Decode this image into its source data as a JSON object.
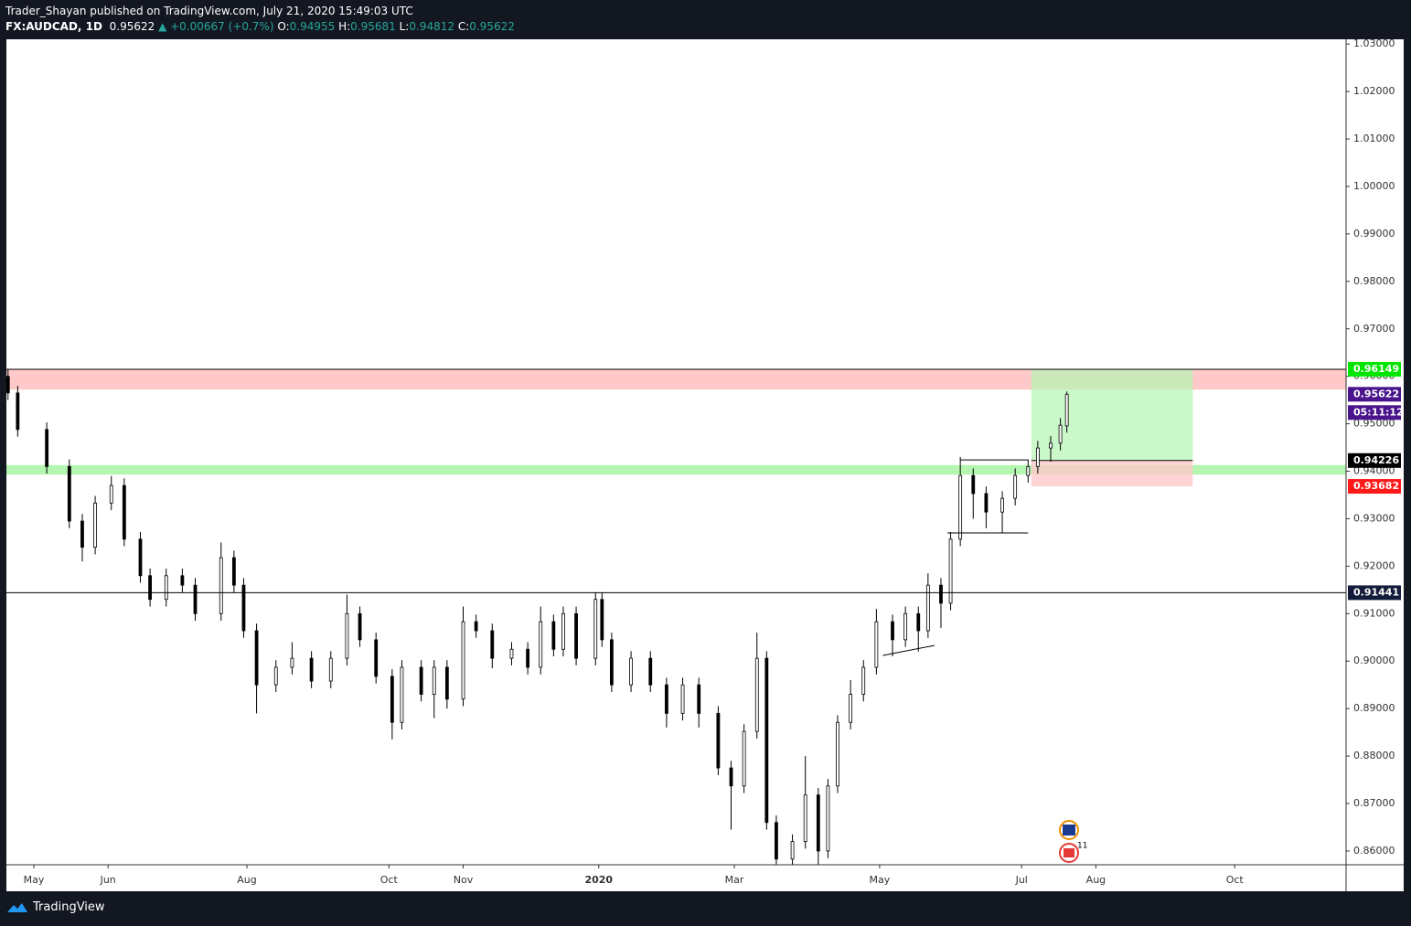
{
  "header": {
    "author_line": "Trader_Shayan published on TradingView.com, July 21, 2020 15:49:03 UTC",
    "symbol": "FX:AUDCAD, 1D",
    "last": "0.95622",
    "change": "▲ +0.00667 (+0.7%)",
    "ohlc": [
      {
        "label": "O:",
        "value": "0.94955"
      },
      {
        "label": "H:",
        "value": "0.95681"
      },
      {
        "label": "L:",
        "value": "0.94812"
      },
      {
        "label": "C:",
        "value": "0.95622"
      }
    ]
  },
  "chart_data": {
    "type": "candlestick",
    "x": [
      -8,
      -5,
      4,
      11,
      15,
      19,
      24,
      28,
      33,
      36,
      41,
      46,
      50,
      58,
      62,
      65,
      69,
      75,
      80,
      86,
      92,
      97,
      101,
      106,
      111,
      114,
      120,
      124,
      128,
      133,
      137,
      142,
      148,
      153,
      157,
      161,
      164,
      168,
      174,
      176,
      179,
      185,
      191,
      196,
      201,
      206,
      212,
      216,
      220,
      224,
      227,
      230,
      235,
      239,
      243,
      246,
      249,
      253,
      257,
      261,
      266,
      270,
      274,
      277,
      281,
      284,
      287,
      291,
      295,
      300,
      304,
      308,
      311,
      315,
      318,
      320
    ],
    "open": [
      0.96,
      0.9565,
      0.9488,
      0.941,
      0.9295,
      0.924,
      0.9333,
      0.937,
      0.9257,
      0.918,
      0.913,
      0.918,
      0.916,
      0.91,
      0.9218,
      0.916,
      0.9064,
      0.895,
      0.8987,
      0.9006,
      0.8958,
      0.9006,
      0.91,
      0.9045,
      0.8968,
      0.8871,
      0.8987,
      0.893,
      0.8987,
      0.892,
      0.9083,
      0.9064,
      0.9006,
      0.9025,
      0.8987,
      0.9083,
      0.9025,
      0.91,
      0.9006,
      0.913,
      0.9045,
      0.895,
      0.9006,
      0.895,
      0.889,
      0.895,
      0.889,
      0.8775,
      0.8737,
      0.8852,
      0.9006,
      0.866,
      0.8583,
      0.862,
      0.8718,
      0.86,
      0.8737,
      0.8871,
      0.893,
      0.8987,
      0.9083,
      0.9045,
      0.91,
      0.9064,
      0.916,
      0.9122,
      0.9257,
      0.9391,
      0.9353,
      0.9314,
      0.9343,
      0.9391,
      0.941,
      0.9449,
      0.9459,
      0.94955
    ],
    "high": [
      0.9615,
      0.958,
      0.9503,
      0.9425,
      0.931,
      0.9348,
      0.939,
      0.9385,
      0.9272,
      0.9195,
      0.9195,
      0.9195,
      0.9175,
      0.925,
      0.9233,
      0.9175,
      0.9079,
      0.9002,
      0.904,
      0.9021,
      0.9021,
      0.914,
      0.9115,
      0.906,
      0.8983,
      0.9002,
      0.9002,
      0.9002,
      0.9002,
      0.9115,
      0.9098,
      0.9079,
      0.904,
      0.904,
      0.9115,
      0.9098,
      0.9115,
      0.9115,
      0.9145,
      0.9145,
      0.906,
      0.9021,
      0.9021,
      0.8965,
      0.8965,
      0.8965,
      0.8905,
      0.879,
      0.8867,
      0.906,
      0.9021,
      0.8675,
      0.8635,
      0.88,
      0.8733,
      0.8752,
      0.8886,
      0.896,
      0.9002,
      0.911,
      0.9098,
      0.9115,
      0.9115,
      0.9185,
      0.9175,
      0.9272,
      0.943,
      0.9406,
      0.9368,
      0.9358,
      0.9406,
      0.9425,
      0.9464,
      0.9474,
      0.9512,
      0.95681
    ],
    "low": [
      0.955,
      0.9473,
      0.9395,
      0.928,
      0.921,
      0.9225,
      0.9318,
      0.9242,
      0.9165,
      0.9115,
      0.9115,
      0.9145,
      0.9085,
      0.9085,
      0.9145,
      0.9049,
      0.889,
      0.8935,
      0.8972,
      0.8943,
      0.8943,
      0.8991,
      0.903,
      0.8953,
      0.8835,
      0.8856,
      0.8915,
      0.888,
      0.89,
      0.8905,
      0.9049,
      0.8985,
      0.8991,
      0.8972,
      0.8972,
      0.901,
      0.901,
      0.8991,
      0.8991,
      0.903,
      0.8935,
      0.8935,
      0.8935,
      0.886,
      0.8875,
      0.886,
      0.876,
      0.8645,
      0.8722,
      0.8837,
      0.8645,
      0.856,
      0.856,
      0.8605,
      0.857,
      0.8585,
      0.8722,
      0.8856,
      0.8915,
      0.8972,
      0.901,
      0.903,
      0.902,
      0.9049,
      0.907,
      0.9107,
      0.9242,
      0.93,
      0.928,
      0.927,
      0.9328,
      0.9376,
      0.9395,
      0.942,
      0.9444,
      0.94812
    ],
    "close": [
      0.9565,
      0.9488,
      0.941,
      0.9295,
      0.924,
      0.9333,
      0.937,
      0.9257,
      0.918,
      0.913,
      0.918,
      0.916,
      0.91,
      0.9218,
      0.916,
      0.9064,
      0.895,
      0.8987,
      0.9006,
      0.8958,
      0.9006,
      0.91,
      0.9045,
      0.8968,
      0.8871,
      0.8987,
      0.893,
      0.8987,
      0.892,
      0.9083,
      0.9064,
      0.9006,
      0.9025,
      0.8987,
      0.9083,
      0.9025,
      0.91,
      0.9006,
      0.913,
      0.9045,
      0.895,
      0.9006,
      0.895,
      0.889,
      0.895,
      0.889,
      0.8775,
      0.8737,
      0.8852,
      0.9006,
      0.866,
      0.8583,
      0.862,
      0.8718,
      0.86,
      0.8737,
      0.8871,
      0.893,
      0.8987,
      0.9083,
      0.9045,
      0.91,
      0.9064,
      0.916,
      0.9122,
      0.9257,
      0.9391,
      0.9353,
      0.9314,
      0.9343,
      0.9391,
      0.941,
      0.9449,
      0.9459,
      0.9497,
      0.95622
    ],
    "up_color": "#ffffff",
    "down_color": "#000000",
    "outline_color": "#000000",
    "xlim": [
      -8.5,
      406.5
    ],
    "ylim": [
      0.8571,
      1.031
    ],
    "xticks": [
      {
        "value": 0,
        "label": "May"
      },
      {
        "value": 23,
        "label": "Jun"
      },
      {
        "value": 66,
        "label": "Aug"
      },
      {
        "value": 110,
        "label": "Oct"
      },
      {
        "value": 133,
        "label": "Nov"
      },
      {
        "value": 175,
        "label": "2020"
      },
      {
        "value": 217,
        "label": "Mar"
      },
      {
        "value": 262,
        "label": "May"
      },
      {
        "value": 306,
        "label": "Jul"
      },
      {
        "value": 329,
        "label": "Aug"
      },
      {
        "value": 372,
        "label": "Oct"
      }
    ],
    "yticks": [
      {
        "value": 0.86,
        "label": "0.86000"
      },
      {
        "value": 0.87,
        "label": "0.87000"
      },
      {
        "value": 0.88,
        "label": "0.88000"
      },
      {
        "value": 0.89,
        "label": "0.89000"
      },
      {
        "value": 0.9,
        "label": "0.90000"
      },
      {
        "value": 0.91,
        "label": "0.91000"
      },
      {
        "value": 0.92,
        "label": "0.92000"
      },
      {
        "value": 0.93,
        "label": "0.93000"
      },
      {
        "value": 0.94,
        "label": "0.94000"
      },
      {
        "value": 0.95,
        "label": "0.95000"
      },
      {
        "value": 0.96,
        "label": "0.96000"
      },
      {
        "value": 0.97,
        "label": "0.97000"
      },
      {
        "value": 0.98,
        "label": "0.98000"
      },
      {
        "value": 0.99,
        "label": "0.99000"
      },
      {
        "value": 1.0,
        "label": "1.00000"
      },
      {
        "value": 1.01,
        "label": "1.01000"
      },
      {
        "value": 1.02,
        "label": "1.02000"
      },
      {
        "value": 1.03,
        "label": "1.03000"
      }
    ],
    "zones": [
      {
        "top": 0.96149,
        "bottom": 0.9572,
        "color": "#ffc9c9"
      },
      {
        "top": 0.9413,
        "bottom": 0.9393,
        "color": "#b4f5b0"
      }
    ],
    "hlines": [
      0.91441
    ],
    "trendlines": [
      {
        "x": [
          283,
          308
        ],
        "y": [
          0.927,
          0.927
        ]
      },
      {
        "x": [
          287,
          308
        ],
        "y": [
          0.9424,
          0.9424
        ]
      },
      {
        "x": [
          263,
          279
        ],
        "y": [
          0.9012,
          0.9033
        ]
      }
    ],
    "position": {
      "x_start": 309,
      "x_end": 359,
      "target": 0.96149,
      "entry": 0.94226,
      "stop": 0.93682,
      "profit_color": "#b4f5b0",
      "loss_color": "#ffc9c9"
    },
    "price_labels": [
      {
        "value": 0.96149,
        "color": "#00e600"
      },
      {
        "value": 0.95622,
        "color": "#4a148c",
        "countdown": "05:11:12"
      },
      {
        "value": 0.94226,
        "color": "#000000"
      },
      {
        "value": 0.93682,
        "color": "#ff1a1a"
      },
      {
        "value": 0.91441,
        "color": "#131c3a"
      }
    ],
    "event_badge": "11"
  },
  "footer": {
    "brand": "TradingView"
  }
}
